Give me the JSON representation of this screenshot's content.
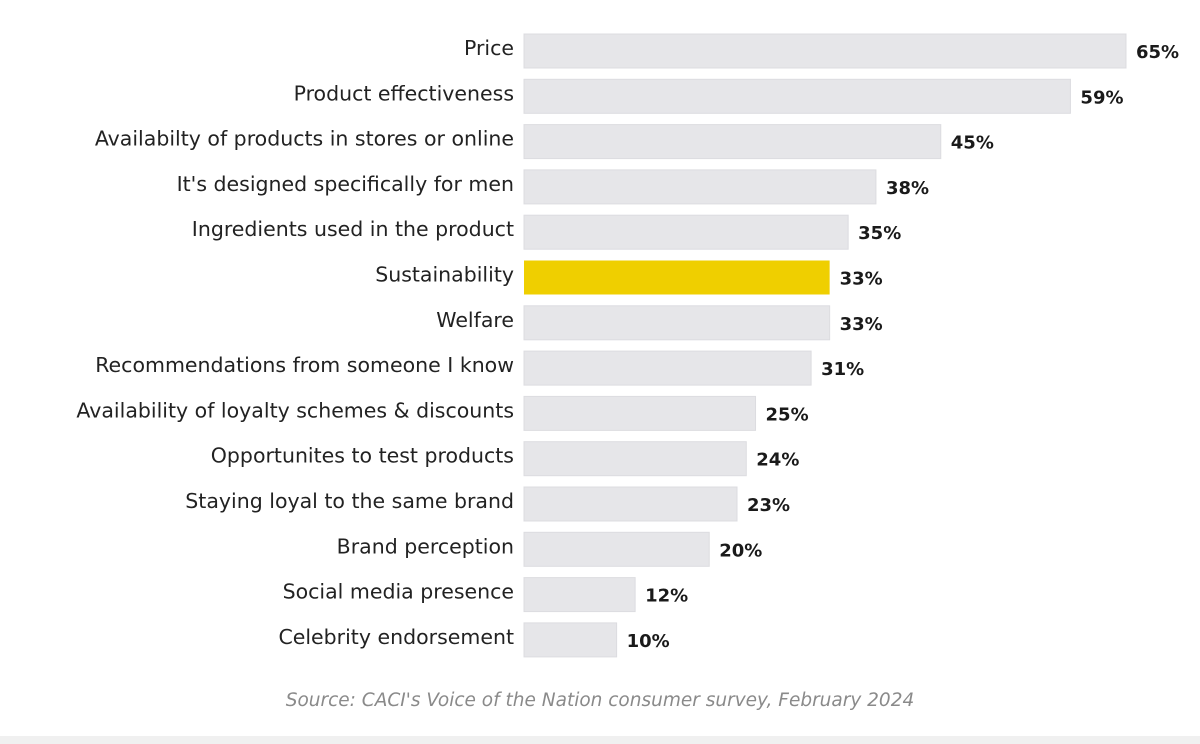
{
  "chart_data": {
    "type": "bar",
    "orientation": "horizontal",
    "categories": [
      "Price",
      "Product effectiveness",
      "Availabilty of products in stores or online",
      "It's designed specifically for men",
      "Ingredients used in the product",
      "Sustainability",
      "Welfare",
      "Recommendations from someone I know",
      "Availability of loyalty schemes & discounts",
      "Opportunites to test products",
      "Staying loyal to the same brand",
      "Brand perception",
      "Social media presence",
      "Celebrity endorsement"
    ],
    "values": [
      65,
      59,
      45,
      38,
      35,
      33,
      33,
      31,
      25,
      24,
      23,
      20,
      12,
      10
    ],
    "value_labels": [
      "65%",
      "59%",
      "45%",
      "38%",
      "35%",
      "33%",
      "33%",
      "31%",
      "25%",
      "24%",
      "23%",
      "20%",
      "12%",
      "10%"
    ],
    "xlim": [
      0,
      65
    ],
    "highlight_category": "Sustainability",
    "colors": {
      "bar": "#e6e6e9",
      "bar_border": "#dcdce0",
      "highlight": "#efcf00"
    },
    "grid": false,
    "legend": "none"
  },
  "source": "Source: CACI's Voice of the Nation consumer survey, February 2024"
}
